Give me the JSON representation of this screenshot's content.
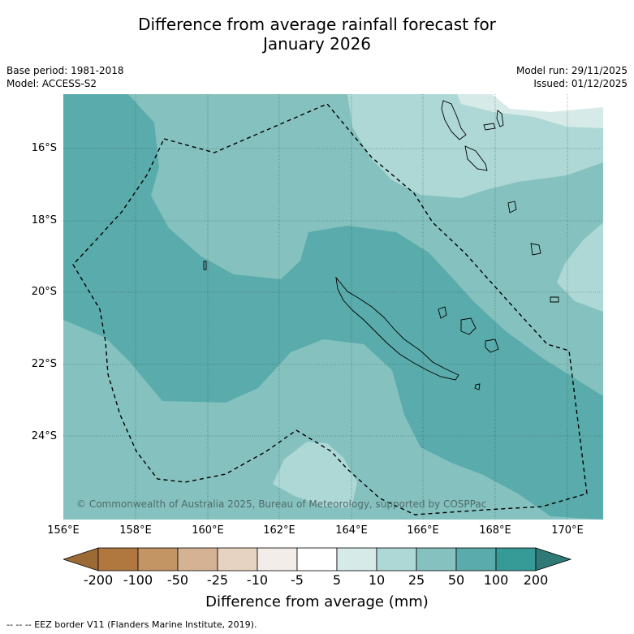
{
  "title_line1": "Difference from average rainfall forecast for",
  "title_line2": "January 2026",
  "base_period": "Base period: 1981-2018",
  "model": "Model: ACCESS-S2",
  "model_run": "Model run: 29/11/2025",
  "issued": "Issued: 01/12/2025",
  "lat_labels": [
    "16°S",
    "18°S",
    "20°S",
    "22°S",
    "24°S"
  ],
  "lon_labels": [
    "156°E",
    "158°E",
    "160°E",
    "162°E",
    "164°E",
    "166°E",
    "168°E",
    "170°E"
  ],
  "copyright": "© Commonwealth of Australia 2025, Bureau of Meteorology, supported by COSPPac",
  "colorbar": {
    "ticks": [
      "-200",
      "-100",
      "-50",
      "-25",
      "-10",
      "-5",
      "5",
      "10",
      "25",
      "50",
      "100",
      "200"
    ],
    "label": "Difference from average (mm)",
    "colors": {
      "below_200": "#9c6a35",
      "m200_m100": "#b0773f",
      "m100_m50": "#c39464",
      "m50_m25": "#d6b295",
      "m25_m10": "#e7d3c1",
      "m10_m5": "#f2ede9",
      "m5_5": "#ffffff",
      "p5_10": "#d6eae8",
      "p10_25": "#aed8d6",
      "p25_50": "#85c2bf",
      "p50_100": "#5aabab",
      "p100_200": "#369a96",
      "above_200": "#2f7a77"
    }
  },
  "footnote": "--  --  -- EEZ border V11 (Flanders Marine Institute, 2019)."
}
